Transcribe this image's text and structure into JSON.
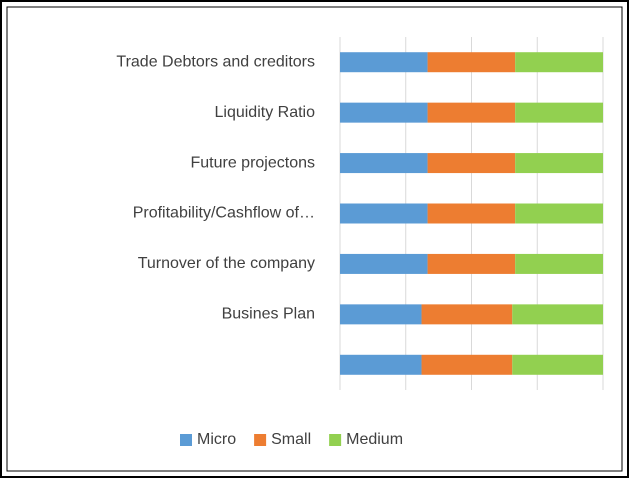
{
  "chart_data": {
    "type": "stacked-bar-horizontal",
    "categories": [
      "Trade Debtors and creditors",
      "Liquidity Ratio",
      "Future projectons",
      "Profitability/Cashflow of…",
      "Turnover of the company",
      "Busines Plan",
      null
    ],
    "series": [
      {
        "name": "Micro",
        "color": "#5b9bd5",
        "values": [
          33.3,
          33.3,
          33.3,
          33.3,
          33.3,
          31,
          31
        ]
      },
      {
        "name": "Small",
        "color": "#ed7d31",
        "values": [
          33.3,
          33.3,
          33.3,
          33.3,
          33.3,
          34.5,
          34.5
        ]
      },
      {
        "name": "Medium",
        "color": "#92d050",
        "values": [
          33.4,
          33.4,
          33.4,
          33.4,
          33.4,
          34.5,
          34.5
        ]
      }
    ],
    "xlim": [
      0,
      100
    ],
    "xticks": [
      0,
      25,
      50,
      75,
      100
    ],
    "grid": true,
    "legend": "bottom"
  }
}
